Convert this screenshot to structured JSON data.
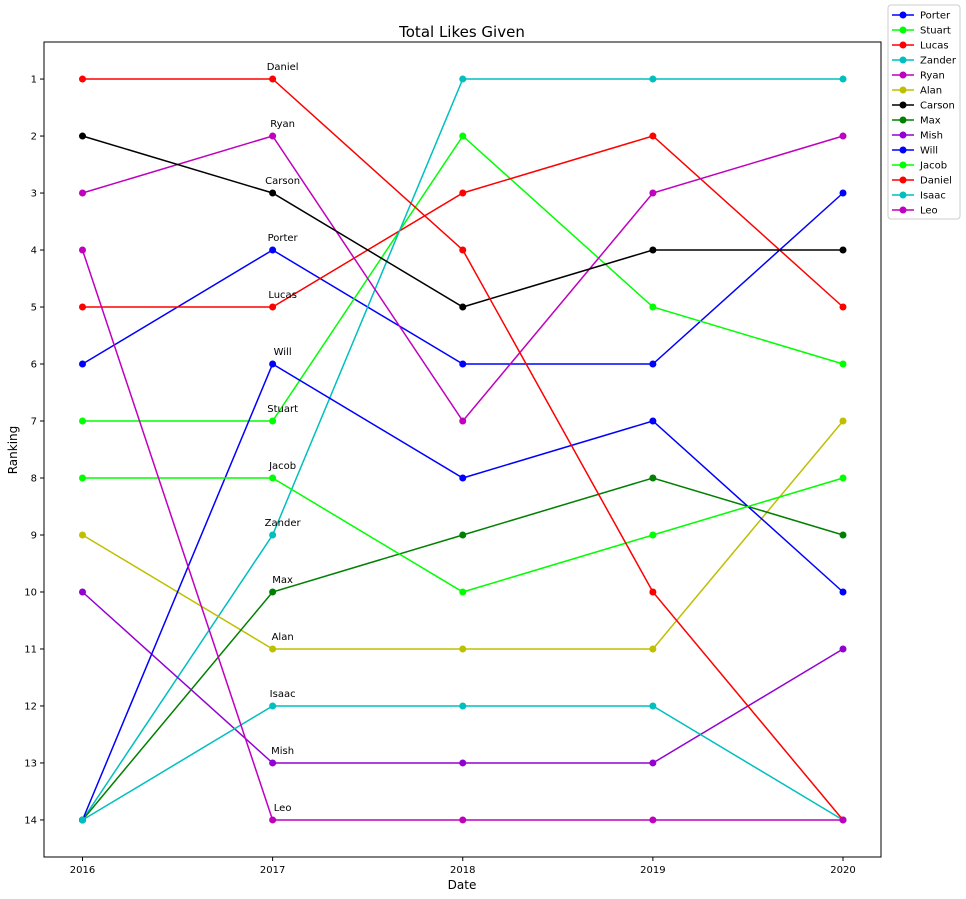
{
  "chart_data": {
    "type": "line",
    "title": "Total Likes Given",
    "xlabel": "Date",
    "ylabel": "Ranking",
    "x": [
      "2016",
      "2017",
      "2018",
      "2019",
      "2020"
    ],
    "yticks": [
      1,
      2,
      3,
      4,
      5,
      6,
      7,
      8,
      9,
      10,
      11,
      12,
      13,
      14
    ],
    "ylim": [
      0.35,
      14.65
    ],
    "y_inverted": true,
    "legend_position": "outside top-right",
    "series": [
      {
        "name": "Porter",
        "color": "#0000ff",
        "values": [
          6,
          4,
          6,
          6,
          3
        ]
      },
      {
        "name": "Stuart",
        "color": "#00ff00",
        "values": [
          7,
          7,
          2,
          5,
          6
        ]
      },
      {
        "name": "Lucas",
        "color": "#ff0000",
        "values": [
          5,
          5,
          3,
          2,
          5
        ]
      },
      {
        "name": "Zander",
        "color": "#00bfbf",
        "values": [
          14,
          9,
          1,
          1,
          1
        ]
      },
      {
        "name": "Ryan",
        "color": "#bf00bf",
        "values": [
          3,
          2,
          7,
          3,
          2
        ]
      },
      {
        "name": "Alan",
        "color": "#bfbf00",
        "values": [
          9,
          11,
          11,
          11,
          7
        ]
      },
      {
        "name": "Carson",
        "color": "#000000",
        "values": [
          2,
          3,
          5,
          4,
          4
        ]
      },
      {
        "name": "Max",
        "color": "#008000",
        "values": [
          14,
          10,
          9,
          8,
          9
        ]
      },
      {
        "name": "Mish",
        "color": "#9400d3",
        "values": [
          10,
          13,
          13,
          13,
          11
        ]
      },
      {
        "name": "Will",
        "color": "#0000ff",
        "values": [
          14,
          6,
          8,
          7,
          10
        ]
      },
      {
        "name": "Jacob",
        "color": "#00ff00",
        "values": [
          8,
          8,
          10,
          9,
          8
        ]
      },
      {
        "name": "Daniel",
        "color": "#ff0000",
        "values": [
          1,
          1,
          4,
          10,
          14
        ]
      },
      {
        "name": "Isaac",
        "color": "#00bfbf",
        "values": [
          14,
          12,
          12,
          12,
          14
        ]
      },
      {
        "name": "Leo",
        "color": "#bf00bf",
        "values": [
          4,
          14,
          14,
          14,
          14
        ]
      }
    ],
    "annotations_at": "2017"
  }
}
